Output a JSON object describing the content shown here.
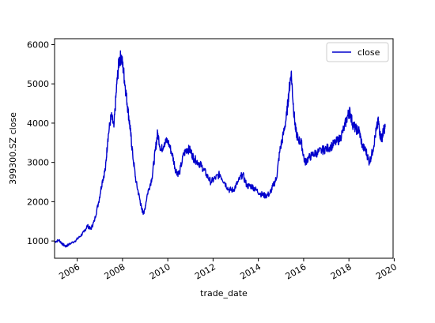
{
  "chart_data": {
    "type": "line",
    "title": "",
    "xlabel": "trade_date",
    "ylabel": "399300.SZ close",
    "xlim": [
      2005.0,
      2019.95
    ],
    "ylim": [
      560,
      6150
    ],
    "x_ticks": [
      "2006",
      "2008",
      "2010",
      "2012",
      "2014",
      "2016",
      "2018",
      "2020"
    ],
    "y_ticks": [
      "1000",
      "2000",
      "3000",
      "4000",
      "5000",
      "6000"
    ],
    "grid": false,
    "legend_position": "top-right",
    "colors": {
      "series": "#0000cc",
      "axis": "#000000"
    },
    "series": [
      {
        "name": "close",
        "x": [
          2005.0,
          2005.2,
          2005.35,
          2005.5,
          2005.6,
          2005.9,
          2006.1,
          2006.3,
          2006.45,
          2006.6,
          2006.75,
          2006.95,
          2007.1,
          2007.25,
          2007.35,
          2007.5,
          2007.62,
          2007.75,
          2007.85,
          2007.95,
          2008.05,
          2008.15,
          2008.25,
          2008.35,
          2008.45,
          2008.6,
          2008.75,
          2008.85,
          2008.95,
          2009.1,
          2009.3,
          2009.45,
          2009.55,
          2009.7,
          2009.85,
          2010.0,
          2010.2,
          2010.35,
          2010.5,
          2010.7,
          2010.85,
          2011.0,
          2011.15,
          2011.35,
          2011.5,
          2011.7,
          2011.9,
          2012.1,
          2012.3,
          2012.5,
          2012.7,
          2012.9,
          2013.1,
          2013.3,
          2013.5,
          2013.7,
          2013.9,
          2014.1,
          2014.3,
          2014.5,
          2014.65,
          2014.8,
          2014.95,
          2015.1,
          2015.25,
          2015.35,
          2015.45,
          2015.55,
          2015.65,
          2015.75,
          2015.9,
          2016.05,
          2016.2,
          2016.4,
          2016.6,
          2016.8,
          2017.0,
          2017.2,
          2017.4,
          2017.6,
          2017.8,
          2017.95,
          2018.05,
          2018.15,
          2018.3,
          2018.45,
          2018.6,
          2018.75,
          2018.9,
          2019.05,
          2019.2,
          2019.3,
          2019.38,
          2019.45,
          2019.52,
          2019.6
        ],
        "values": [
          980,
          1020,
          920,
          860,
          900,
          1000,
          1100,
          1230,
          1390,
          1300,
          1500,
          2000,
          2500,
          2850,
          3600,
          4200,
          3900,
          5000,
          5600,
          5700,
          5300,
          4800,
          4300,
          3800,
          3200,
          2500,
          2100,
          1800,
          1700,
          2200,
          2600,
          3300,
          3750,
          3300,
          3500,
          3550,
          3200,
          2800,
          2700,
          3200,
          3350,
          3300,
          3100,
          3000,
          2900,
          2700,
          2500,
          2600,
          2700,
          2500,
          2300,
          2300,
          2500,
          2700,
          2400,
          2400,
          2300,
          2200,
          2150,
          2200,
          2400,
          2600,
          3300,
          3700,
          4200,
          4800,
          5300,
          4400,
          3800,
          3600,
          3500,
          3000,
          3100,
          3200,
          3250,
          3300,
          3350,
          3400,
          3500,
          3600,
          3900,
          4200,
          4300,
          4000,
          3850,
          3800,
          3400,
          3300,
          3000,
          3300,
          3800,
          4050,
          3700,
          3600,
          3800,
          3900
        ]
      }
    ]
  }
}
